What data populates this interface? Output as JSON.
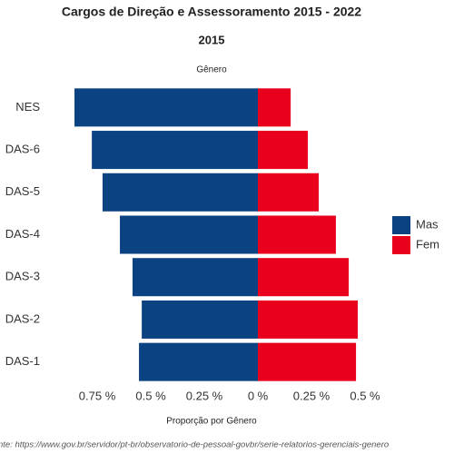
{
  "chart_data": {
    "type": "diverging_bar",
    "title": "Cargos de Direção e Assessoramento  2015 - 2022",
    "subtitle": "2015",
    "facet_label": "Gênero",
    "x_label": "Proporção por Gênero",
    "source": "nte: https://www.gov.br/servidor/pt-br/observatorio-de-pessoal-govbr/serie-relatorios-gerenciais-genero",
    "categories": [
      "NES",
      "DAS-6",
      "DAS-5",
      "DAS-4",
      "DAS-3",
      "DAS-2",
      "DAS-1"
    ],
    "series": [
      {
        "name": "Mas",
        "color": "#0b4282",
        "values": [
          -0.856,
          -0.775,
          -0.725,
          -0.644,
          -0.585,
          -0.542,
          -0.555
        ]
      },
      {
        "name": "Fem",
        "color": "#e8001c",
        "values": [
          0.153,
          0.233,
          0.284,
          0.364,
          0.424,
          0.466,
          0.458
        ]
      }
    ],
    "xlim": [
      -0.89,
      0.6
    ],
    "xticks": [
      {
        "value": -0.75,
        "label": "0.75 %"
      },
      {
        "value": -0.5,
        "label": "0.5 %"
      },
      {
        "value": -0.25,
        "label": "0.25 %"
      },
      {
        "value": 0,
        "label": "0 %"
      },
      {
        "value": 0.25,
        "label": "0.25 %"
      },
      {
        "value": 0.5,
        "label": "0.5 %"
      }
    ],
    "legend": "right",
    "grid": false
  }
}
